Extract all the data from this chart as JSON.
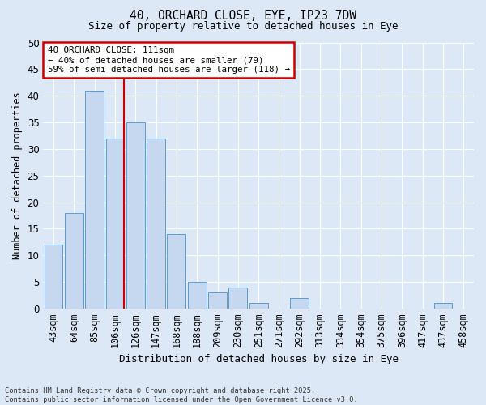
{
  "title1": "40, ORCHARD CLOSE, EYE, IP23 7DW",
  "title2": "Size of property relative to detached houses in Eye",
  "xlabel": "Distribution of detached houses by size in Eye",
  "ylabel": "Number of detached properties",
  "categories": [
    "43sqm",
    "64sqm",
    "85sqm",
    "106sqm",
    "126sqm",
    "147sqm",
    "168sqm",
    "188sqm",
    "209sqm",
    "230sqm",
    "251sqm",
    "271sqm",
    "292sqm",
    "313sqm",
    "334sqm",
    "354sqm",
    "375sqm",
    "396sqm",
    "417sqm",
    "437sqm",
    "458sqm"
  ],
  "values": [
    12,
    18,
    41,
    32,
    35,
    32,
    14,
    5,
    3,
    4,
    1,
    0,
    2,
    0,
    0,
    0,
    0,
    0,
    0,
    1,
    0
  ],
  "bar_color": "#c5d8f0",
  "bar_edge_color": "#5b9bd5",
  "vline_color": "#cc0000",
  "annotation_text": "40 ORCHARD CLOSE: 111sqm\n← 40% of detached houses are smaller (79)\n59% of semi-detached houses are larger (118) →",
  "annotation_box_color": "#ffffff",
  "annotation_box_edge": "#cc0000",
  "ylim": [
    0,
    50
  ],
  "yticks": [
    0,
    5,
    10,
    15,
    20,
    25,
    30,
    35,
    40,
    45,
    50
  ],
  "footer": "Contains HM Land Registry data © Crown copyright and database right 2025.\nContains public sector information licensed under the Open Government Licence v3.0.",
  "bg_color": "#dce8f5",
  "plot_bg_color": "#dce8f5",
  "grid_color": "#ffffff"
}
